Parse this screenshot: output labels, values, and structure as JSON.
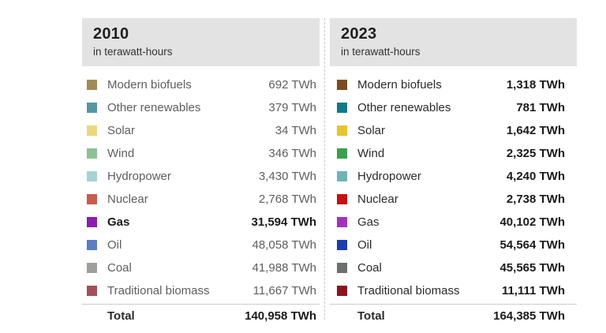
{
  "unit_note": "in terawatt-hours",
  "tables": [
    {
      "year": "2010",
      "subtitle": "in terawatt-hours",
      "rows": [
        {
          "label": "Modern biofuels",
          "value": "692 TWh",
          "color": "#a28a57"
        },
        {
          "label": "Other renewables",
          "value": "379 TWh",
          "color": "#5796a1"
        },
        {
          "label": "Solar",
          "value": "34 TWh",
          "color": "#edd77c"
        },
        {
          "label": "Wind",
          "value": "346 TWh",
          "color": "#8bc193"
        },
        {
          "label": "Hydropower",
          "value": "3,430 TWh",
          "color": "#a6d3d5"
        },
        {
          "label": "Nuclear",
          "value": "2,768 TWh",
          "color": "#c75b4d"
        },
        {
          "label": "Gas",
          "value": "31,594 TWh",
          "color": "#8a1fad"
        },
        {
          "label": "Oil",
          "value": "48,058 TWh",
          "color": "#5a7ec1"
        },
        {
          "label": "Coal",
          "value": "41,988 TWh",
          "color": "#9ea09c"
        },
        {
          "label": "Traditional biomass",
          "value": "11,667 TWh",
          "color": "#a45057"
        }
      ],
      "total_label": "Total",
      "total_value": "140,958 TWh"
    },
    {
      "year": "2023",
      "subtitle": "in terawatt-hours",
      "rows": [
        {
          "label": "Modern biofuels",
          "value": "1,318 TWh",
          "color": "#7a4d1d"
        },
        {
          "label": "Other renewables",
          "value": "781 TWh",
          "color": "#107a89"
        },
        {
          "label": "Solar",
          "value": "1,642 TWh",
          "color": "#e6c42f"
        },
        {
          "label": "Wind",
          "value": "2,325 TWh",
          "color": "#3d9e4e"
        },
        {
          "label": "Hydropower",
          "value": "4,240 TWh",
          "color": "#6fb3b7"
        },
        {
          "label": "Nuclear",
          "value": "2,738 TWh",
          "color": "#c51111"
        },
        {
          "label": "Gas",
          "value": "40,102 TWh",
          "color": "#a033bc"
        },
        {
          "label": "Oil",
          "value": "54,564 TWh",
          "color": "#1b3eae"
        },
        {
          "label": "Coal",
          "value": "45,565 TWh",
          "color": "#6d6f6e"
        },
        {
          "label": "Traditional biomass",
          "value": "11,111 TWh",
          "color": "#8c1420"
        }
      ],
      "total_label": "Total",
      "total_value": "164,385 TWh"
    }
  ],
  "chart_data": [
    {
      "type": "table",
      "title": "2010",
      "subtitle": "in terawatt-hours",
      "unit": "TWh",
      "categories": [
        "Modern biofuels",
        "Other renewables",
        "Solar",
        "Wind",
        "Hydropower",
        "Nuclear",
        "Gas",
        "Oil",
        "Coal",
        "Traditional biomass"
      ],
      "values": [
        692,
        379,
        34,
        346,
        3430,
        2768,
        31594,
        48058,
        41988,
        11667
      ],
      "highlighted_category": "Gas",
      "total": 140958
    },
    {
      "type": "table",
      "title": "2023",
      "subtitle": "in terawatt-hours",
      "unit": "TWh",
      "categories": [
        "Modern biofuels",
        "Other renewables",
        "Solar",
        "Wind",
        "Hydropower",
        "Nuclear",
        "Gas",
        "Oil",
        "Coal",
        "Traditional biomass"
      ],
      "values": [
        1318,
        781,
        1642,
        2325,
        4240,
        2738,
        40102,
        54564,
        45565,
        11111
      ],
      "total": 164385
    }
  ]
}
